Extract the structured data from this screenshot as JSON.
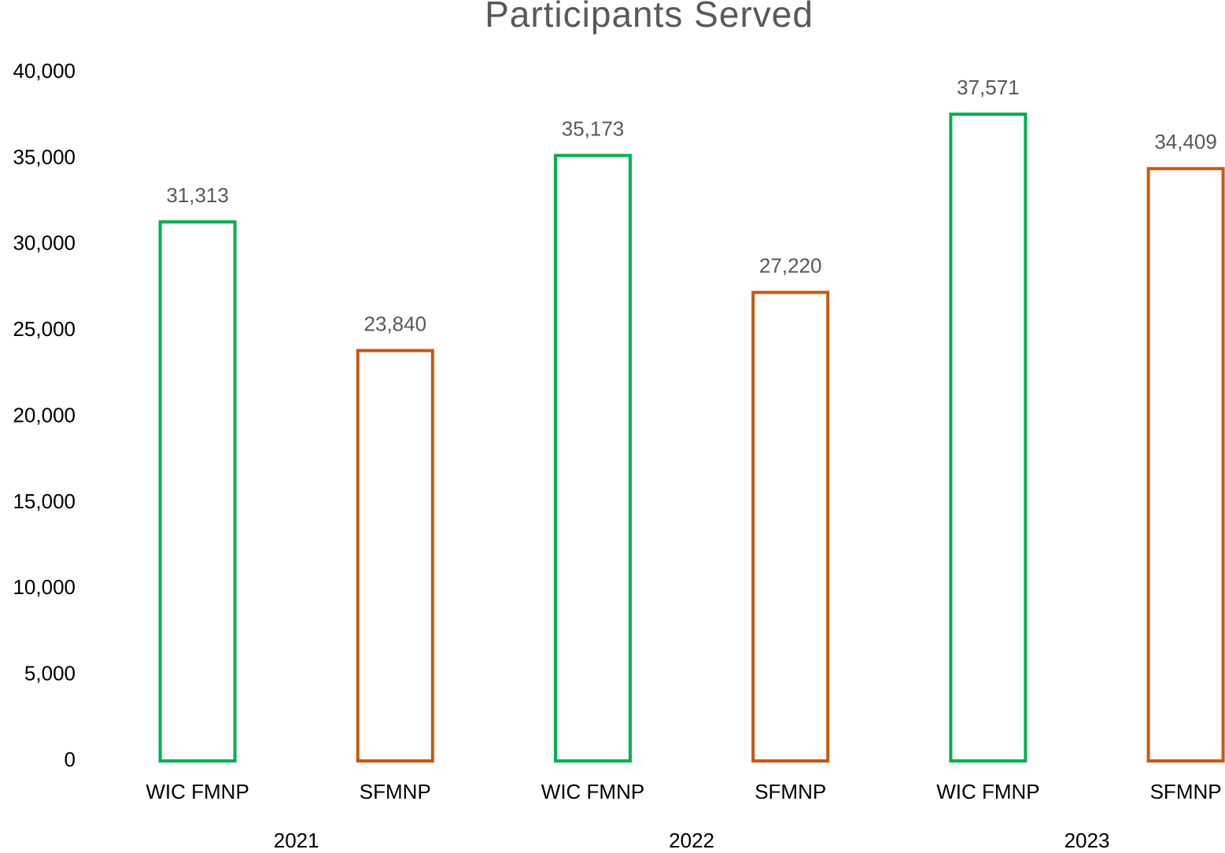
{
  "chart_data": {
    "type": "bar",
    "title": "Participants Served",
    "categories": [
      "WIC FMNP",
      "SFMNP",
      "WIC FMNP",
      "SFMNP",
      "WIC FMNP",
      "SFMNP"
    ],
    "groups": [
      "2021",
      "2022",
      "2023"
    ],
    "values": [
      31313,
      23840,
      35173,
      27220,
      37571,
      34409
    ],
    "value_labels": [
      "31,313",
      "23,840",
      "35,173",
      "27,220",
      "37,571",
      "34,409"
    ],
    "colors": [
      "#00b050",
      "#c55a11",
      "#00b050",
      "#c55a11",
      "#00b050",
      "#c55a11"
    ],
    "ylim": [
      0,
      40000
    ],
    "yticks": [
      0,
      {
        "value": 5000,
        "label": "5,000"
      },
      {
        "value": 10000,
        "label": "10,000"
      },
      {
        "value": 15000,
        "label": "15,000"
      },
      {
        "value": 20000,
        "label": "20,000"
      },
      {
        "value": 25000,
        "label": "25,000"
      },
      {
        "value": 30000,
        "label": "30,000"
      },
      {
        "value": 35000,
        "label": "35,000"
      },
      {
        "value": 40000,
        "label": "40,000"
      }
    ],
    "grid": false
  }
}
